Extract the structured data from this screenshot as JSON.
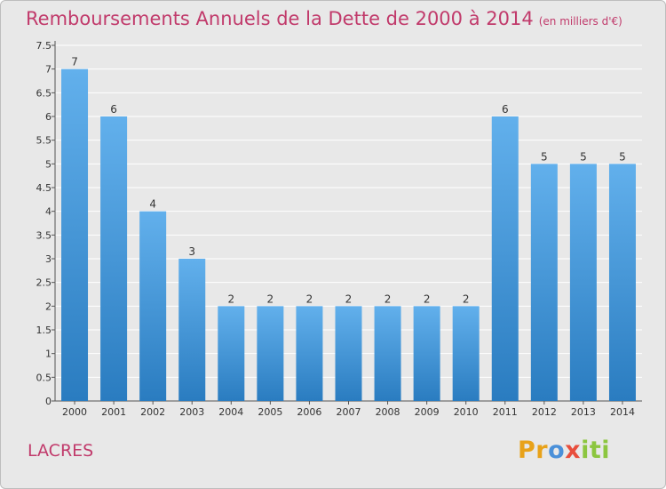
{
  "title": "Remboursements Annuels de la Dette de 2000 à 2014",
  "unit_note": "(en milliers d'€)",
  "commune": "LACRES",
  "brand": {
    "part1": "Pr",
    "part2": "o",
    "part3": "x",
    "part4": "iti"
  },
  "chart_data": {
    "type": "bar",
    "categories": [
      "2000",
      "2001",
      "2002",
      "2003",
      "2004",
      "2005",
      "2006",
      "2007",
      "2008",
      "2009",
      "2010",
      "2011",
      "2012",
      "2013",
      "2014"
    ],
    "values": [
      7,
      6,
      4,
      3,
      2,
      2,
      2,
      2,
      2,
      2,
      2,
      6,
      5,
      5,
      5
    ],
    "data_labels": [
      "7",
      "6",
      "4",
      "3",
      "2",
      "2",
      "2",
      "2",
      "2",
      "2",
      "2",
      "6",
      "5",
      "5",
      "5"
    ],
    "yticks": [
      "0",
      "0.5",
      "1",
      "1.5",
      "2",
      "2.5",
      "3",
      "3.5",
      "4",
      "4.5",
      "5",
      "5.5",
      "6",
      "6.5",
      "7",
      "7.5"
    ],
    "ylim": [
      0,
      7.5
    ],
    "grid": true,
    "bar_color_top": "#62b0ec",
    "bar_color_bottom": "#2a7cc0",
    "title_color": "#c13a6b"
  }
}
